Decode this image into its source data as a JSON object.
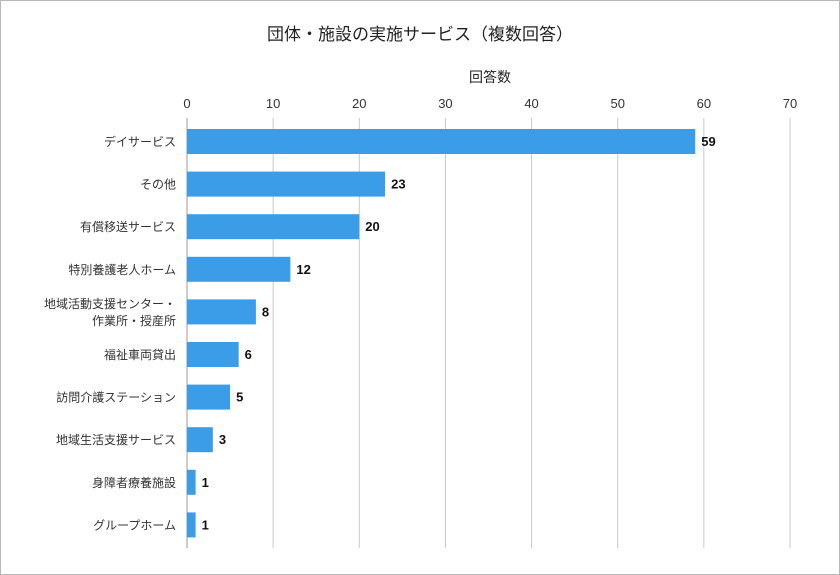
{
  "chart_data": {
    "type": "bar",
    "orientation": "horizontal",
    "title": "団体・施設の実施サービス（複数回答）",
    "xlabel": "回答数",
    "ylabel": "",
    "xlim": [
      0,
      70
    ],
    "ticks": [
      0,
      10,
      20,
      30,
      40,
      50,
      60,
      70
    ],
    "grid": true,
    "legend": "none",
    "bar_color": "#3b9de8",
    "categories": [
      [
        "デイサービス"
      ],
      [
        "その他"
      ],
      [
        "有償移送サービス"
      ],
      [
        "特別養護老人ホーム"
      ],
      [
        "地域活動支援センター・",
        "作業所・授産所"
      ],
      [
        "福祉車両貸出"
      ],
      [
        "訪問介護ステーション"
      ],
      [
        "地域生活支援サービス"
      ],
      [
        "身障者療養施設"
      ],
      [
        "グループホーム"
      ]
    ],
    "values": [
      59,
      23,
      20,
      12,
      8,
      6,
      5,
      3,
      1,
      1
    ]
  }
}
